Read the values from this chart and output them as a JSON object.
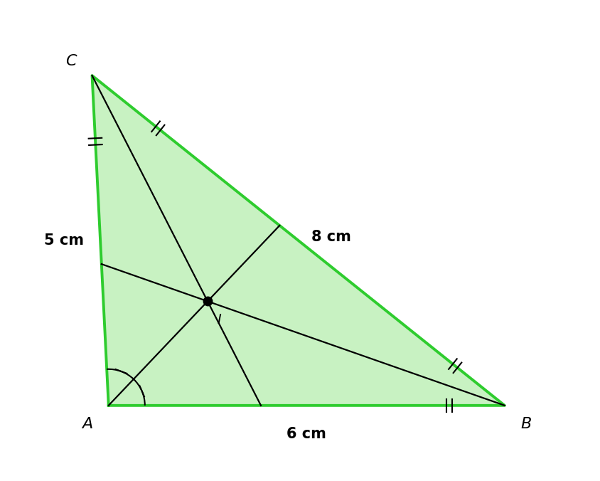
{
  "side_lengths": {
    "AB": 6,
    "BC": 8,
    "AC": 5
  },
  "labels": {
    "A": "A",
    "B": "B",
    "C": "C",
    "I": "I"
  },
  "side_labels": {
    "AB": "6 cm",
    "BC": "8 cm",
    "AC": "5 cm"
  },
  "triangle_fill_color": "#c8f2c2",
  "triangle_edge_color": "#2ecc2e",
  "bisector_color": "#000000",
  "triangle_linewidth": 2.8,
  "bisector_linewidth": 1.6,
  "incenter_dot_size": 9,
  "font_size_labels": 16,
  "font_size_side_labels": 15,
  "background_color": "#ffffff"
}
